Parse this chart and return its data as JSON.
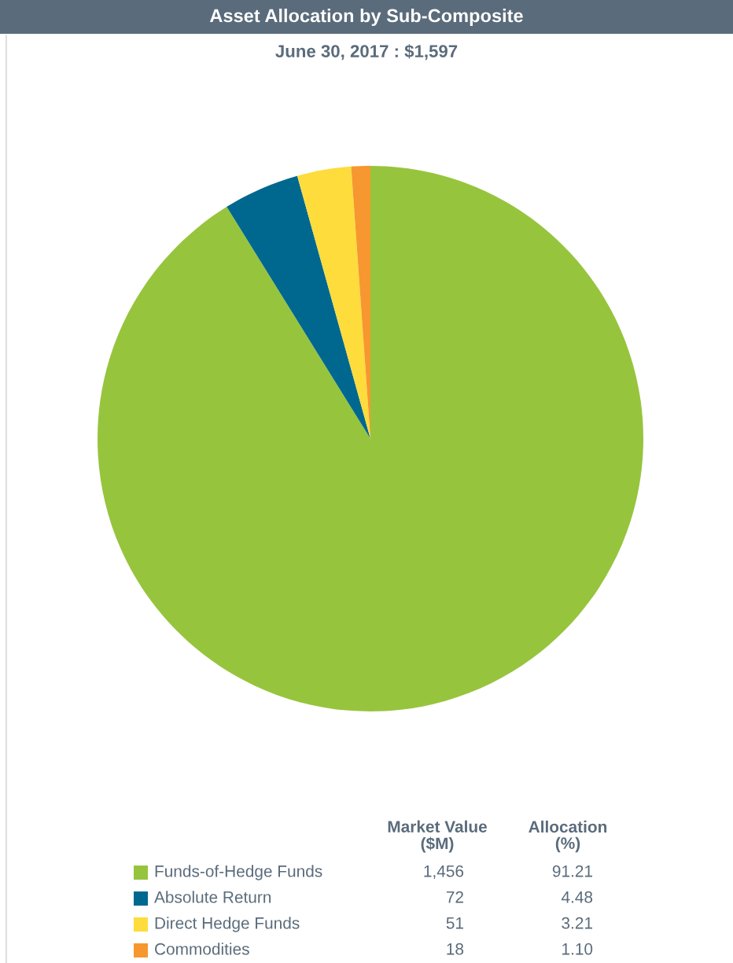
{
  "chart_data": {
    "type": "pie",
    "title": "Asset Allocation by Sub-Composite",
    "subtitle": "June 30, 2017 : $1,597",
    "categories": [
      "Funds-of-Hedge Funds",
      "Absolute Return",
      "Direct Hedge Funds",
      "Commodities"
    ],
    "colors": [
      "#97c43d",
      "#00688f",
      "#fddc3c",
      "#f7972f"
    ],
    "values": [
      1456,
      72,
      51,
      18
    ],
    "value_labels": [
      "1,456",
      "72",
      "51",
      "18"
    ],
    "annotations": [
      "Market Value ($M)",
      "Allocation (%)",
      "91.21",
      "4.48",
      "3.21",
      "1.10"
    ],
    "legend": "bottom"
  }
}
